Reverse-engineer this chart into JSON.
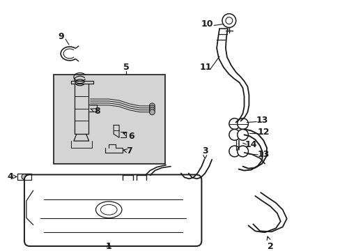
{
  "bg_color": "#ffffff",
  "line_color": "#1a1a1a",
  "box_bg": "#d8d8d8",
  "figsize": [
    4.89,
    3.6
  ],
  "dpi": 100,
  "lw": 1.1
}
